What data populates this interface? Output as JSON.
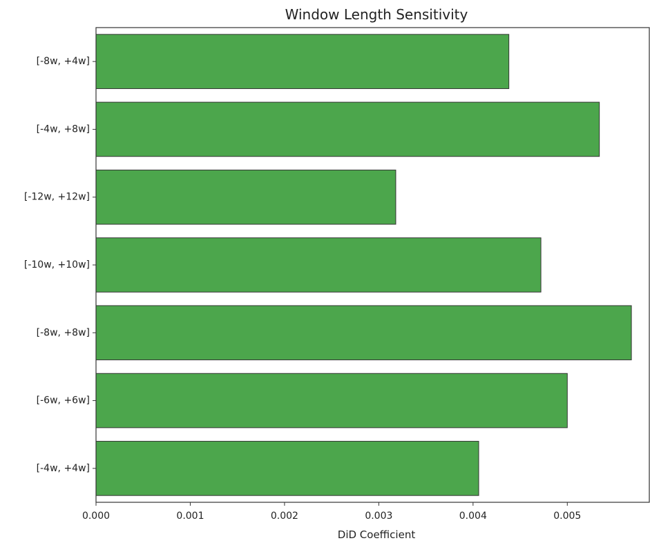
{
  "chart_data": {
    "type": "bar",
    "orientation": "horizontal",
    "title": "Window Length Sensitivity",
    "xlabel": "DiD Coefficient",
    "ylabel": "",
    "xlim": [
      0,
      0.00587
    ],
    "xticks": [
      "0.000",
      "0.001",
      "0.002",
      "0.003",
      "0.004",
      "0.005"
    ],
    "xtick_values": [
      0,
      0.001,
      0.002,
      0.003,
      0.004,
      0.005
    ],
    "categories": [
      "[-8w, +4w]",
      "[-4w, +8w]",
      "[-12w, +12w]",
      "[-10w, +10w]",
      "[-8w, +8w]",
      "[-6w, +6w]",
      "[-4w, +4w]"
    ],
    "values": [
      0.00438,
      0.00534,
      0.00318,
      0.00472,
      0.00568,
      0.005,
      0.00406
    ],
    "bar_color": "#4ca64c",
    "bar_edge_color": "#333333",
    "grid": false,
    "legend": "none"
  }
}
